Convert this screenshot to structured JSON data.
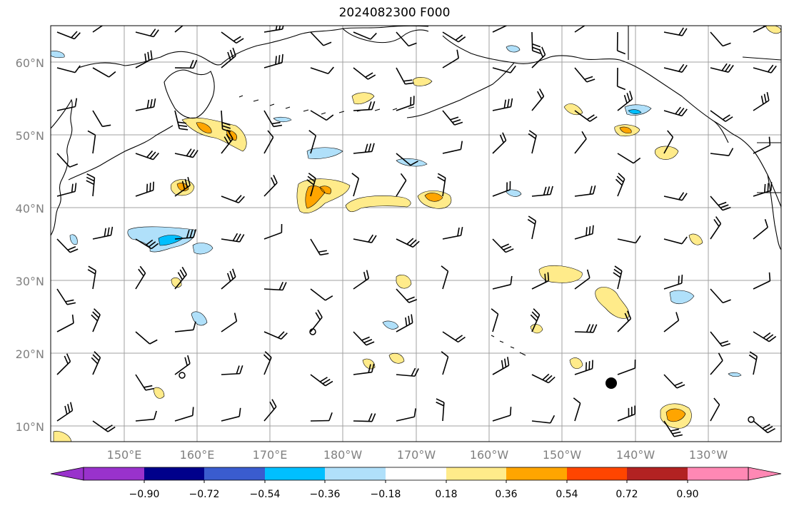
{
  "title": "2024082300 F000",
  "map": {
    "lat_labels": [
      "60°N",
      "50°N",
      "40°N",
      "30°N",
      "20°N",
      "10°N"
    ],
    "lon_labels": [
      "150°E",
      "160°E",
      "170°E",
      "180°W",
      "170°W",
      "160°W",
      "150°W",
      "140°W",
      "130°W"
    ],
    "grid": true,
    "extent": {
      "lon_min": 140,
      "lon_max": 240,
      "lat_min": 8,
      "lat_max": 65
    },
    "gridline_color": "#a0a0a0"
  },
  "colorbar": {
    "ticks": [
      "−0.90",
      "−0.72",
      "−0.54",
      "−0.36",
      "−0.18",
      "0.18",
      "0.36",
      "0.54",
      "0.72",
      "0.90"
    ],
    "bins": [
      {
        "color": "#9932cc"
      },
      {
        "color": "#00008b"
      },
      {
        "color": "#3a5ccf"
      },
      {
        "color": "#00bfff"
      },
      {
        "color": "#b0e0fa"
      },
      {
        "color": "#ffffff"
      },
      {
        "color": "#ffeb8a"
      },
      {
        "color": "#ffa500"
      },
      {
        "color": "#ff4500"
      },
      {
        "color": "#b22222"
      },
      {
        "color": "#ff88b4"
      }
    ],
    "extend": "both"
  },
  "symbols": [
    "wind-barbs",
    "calm-circles",
    "coastlines",
    "station-dot"
  ]
}
